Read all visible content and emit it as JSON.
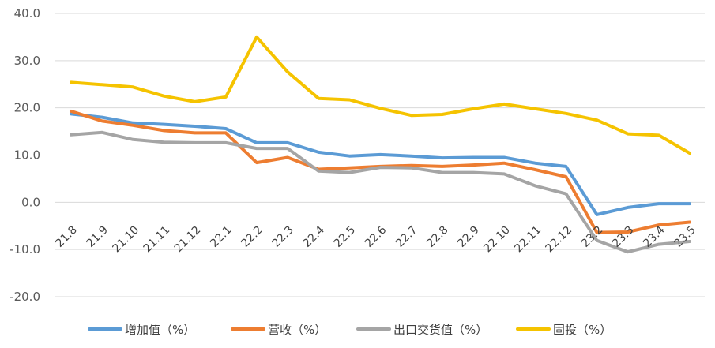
{
  "chart_data": {
    "type": "line",
    "title": "",
    "xlabel": "",
    "ylabel": "",
    "ylim": [
      -20,
      40
    ],
    "yticks": [
      "40.0",
      "30.0",
      "20.0",
      "10.0",
      "0.0",
      "-10.0",
      "-20.0"
    ],
    "grid": true,
    "legend_position": "bottom",
    "categories": [
      "21.8",
      "21.9",
      "21.10",
      "21.11",
      "21.12",
      "22.1",
      "22.2",
      "22.3",
      "22.4",
      "22.5",
      "22.6",
      "22.7",
      "22.8",
      "22.9",
      "22.10",
      "22.11",
      "22.12",
      "23.2",
      "23.3",
      "23.4",
      "23.5"
    ],
    "series": [
      {
        "name": "增加值（%）",
        "color": "#5B9BD5",
        "values": [
          18.7,
          18.0,
          16.8,
          16.5,
          16.1,
          15.6,
          12.6,
          12.6,
          10.6,
          9.8,
          10.1,
          9.8,
          9.4,
          9.5,
          9.5,
          8.3,
          7.6,
          -2.6,
          -1.1,
          -0.3,
          -0.3
        ]
      },
      {
        "name": "营收（%）",
        "color": "#ED7D31",
        "values": [
          19.3,
          17.2,
          16.3,
          15.2,
          14.7,
          14.7,
          8.4,
          9.5,
          7.0,
          7.3,
          7.6,
          7.8,
          7.6,
          7.9,
          8.3,
          6.9,
          5.4,
          -6.4,
          -6.3,
          -4.8,
          -4.2
        ]
      },
      {
        "name": "出口交货值（%）",
        "color": "#A5A5A5",
        "values": [
          14.3,
          14.8,
          13.3,
          12.7,
          12.6,
          12.6,
          11.4,
          11.4,
          6.6,
          6.3,
          7.4,
          7.3,
          6.3,
          6.3,
          6.0,
          3.5,
          1.8,
          -8.1,
          -10.5,
          -8.9,
          -8.3
        ]
      },
      {
        "name": "固投（%）",
        "color": "#F5C300",
        "values": [
          25.4,
          24.9,
          24.4,
          22.5,
          21.3,
          22.3,
          35.0,
          27.6,
          22.0,
          21.7,
          19.9,
          18.4,
          18.6,
          19.8,
          20.8,
          19.8,
          18.8,
          17.4,
          14.5,
          14.2,
          10.4
        ]
      }
    ]
  }
}
